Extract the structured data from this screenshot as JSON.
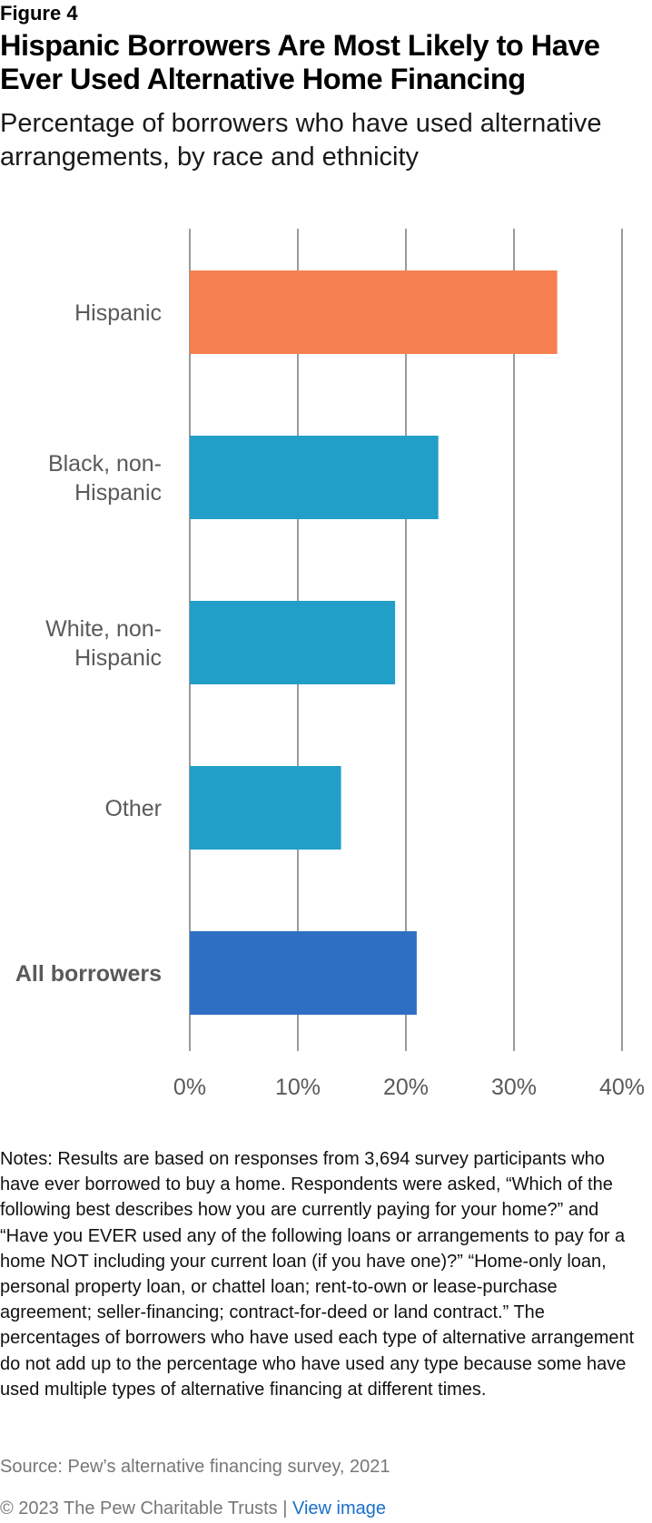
{
  "figure_label": "Figure 4",
  "title": "Hispanic Borrowers Are Most Likely to Have Ever Used Alternative Home Financing",
  "subtitle": "Percentage of borrowers who have used alternative arrangements, by race and ethnicity",
  "colors": {
    "highlight": "#f6804f",
    "default": "#219fc8",
    "total": "#2e6fc4",
    "grid": "#9a9a9a",
    "label": "#5a5a5a"
  },
  "chart_data": {
    "type": "bar",
    "orientation": "horizontal",
    "categories": [
      {
        "lines": [
          "Hispanic"
        ],
        "bold": false,
        "color": "highlight"
      },
      {
        "lines": [
          "Black, non-",
          "Hispanic"
        ],
        "bold": false,
        "color": "default"
      },
      {
        "lines": [
          "White, non-",
          "Hispanic"
        ],
        "bold": false,
        "color": "default"
      },
      {
        "lines": [
          "Other"
        ],
        "bold": false,
        "color": "default"
      },
      {
        "lines": [
          "All borrowers"
        ],
        "bold": true,
        "color": "total"
      }
    ],
    "values": [
      34,
      23,
      19,
      14,
      21
    ],
    "xlim": [
      0,
      40
    ],
    "ticks": [
      0,
      10,
      20,
      30,
      40
    ],
    "tick_labels": [
      "0%",
      "10%",
      "20%",
      "30%",
      "40%"
    ],
    "grid": true,
    "title": "",
    "xlabel": "",
    "ylabel": ""
  },
  "notes": "Notes: Results are based on responses from 3,694 survey participants who have ever borrowed to buy a home. Respondents were asked, “Which of the following best describes how you are currently paying for your home?” and “Have you EVER used any of the following loans or arrangements to pay for a home NOT including your current loan (if you have one)?” “Home-only loan, personal property loan, or chattel loan; rent-to-own or lease-purchase agreement; seller-financing; contract-for-deed or land contract.” The percentages of borrowers who have used each type of alternative arrangement do not add up to the percentage who have used any type because some have used multiple types of alternative financing at different times.",
  "source": "Source: Pew’s alternative financing survey, 2021",
  "footer": {
    "copyright": "© 2023 The Pew Charitable Trusts",
    "separator": "|",
    "link": "View image"
  }
}
